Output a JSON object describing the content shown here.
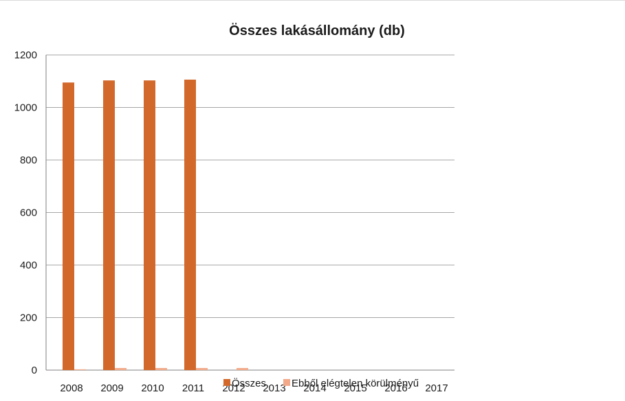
{
  "chart_data": {
    "type": "bar",
    "title": "Összes lakásállomány (db)",
    "categories": [
      "2008",
      "2009",
      "2010",
      "2011",
      "2012",
      "2013",
      "2014",
      "2015",
      "2016",
      "2017"
    ],
    "series": [
      {
        "name": "Összes",
        "color": "#d2692a",
        "values": [
          1095,
          1103,
          1103,
          1106,
          null,
          null,
          null,
          null,
          null,
          null
        ]
      },
      {
        "name": "Ebből elégtelen körülményű",
        "color": "#f2a98a",
        "values": [
          3,
          8,
          8,
          8,
          8,
          null,
          null,
          null,
          null,
          null
        ]
      }
    ],
    "yticks": [
      0,
      200,
      400,
      600,
      800,
      1000,
      1200
    ],
    "ylim": [
      0,
      1200
    ],
    "grid": true,
    "legend": "bottom-center"
  }
}
